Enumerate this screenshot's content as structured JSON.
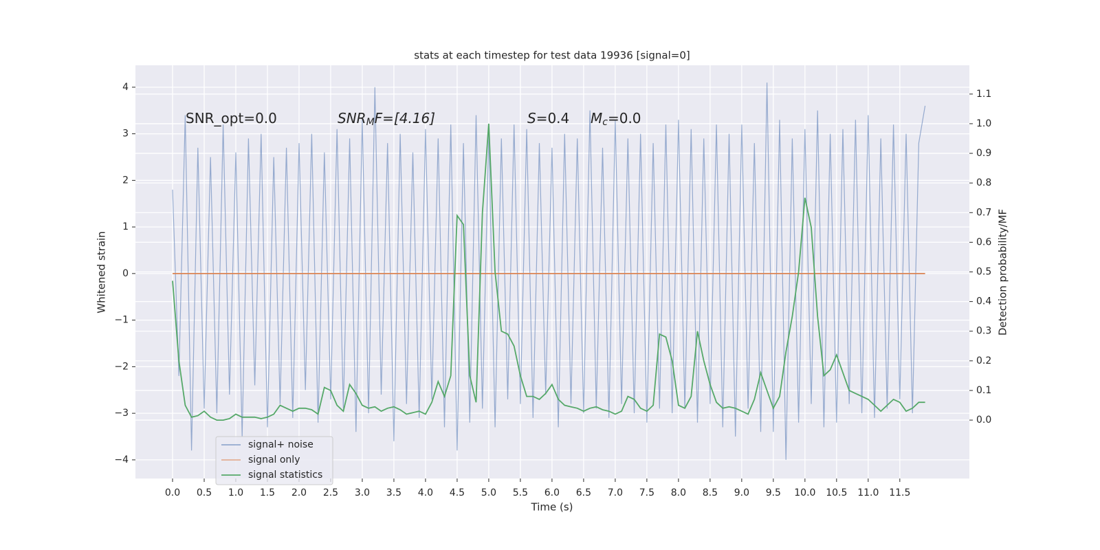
{
  "chart_data": {
    "type": "line",
    "title": "stats at each timestep for test data 19936 [signal=0]",
    "x_label": "Time (s)",
    "y_label": "Whitened strain",
    "y2_label": "Detection probability/MF",
    "annotations": [
      {
        "parts": [
          "SNR_opt=0.0"
        ]
      },
      {
        "parts": [
          "SNR",
          "M",
          "F=[4.16]"
        ]
      },
      {
        "parts": [
          "S",
          "=0.4"
        ]
      },
      {
        "parts": [
          "M",
          "c",
          "=0.0"
        ]
      }
    ],
    "x": [
      0,
      0.1,
      0.2,
      0.3,
      0.4,
      0.5,
      0.6,
      0.7,
      0.8,
      0.9,
      1,
      1.1,
      1.2,
      1.3,
      1.4,
      1.5,
      1.6,
      1.7,
      1.8,
      1.9,
      2,
      2.1,
      2.2,
      2.3,
      2.4,
      2.5,
      2.6,
      2.7,
      2.8,
      2.9,
      3,
      3.1,
      3.2,
      3.3,
      3.4,
      3.5,
      3.6,
      3.7,
      3.8,
      3.9,
      4,
      4.1,
      4.2,
      4.3,
      4.4,
      4.5,
      4.6,
      4.7,
      4.8,
      4.9,
      5,
      5.1,
      5.2,
      5.3,
      5.4,
      5.5,
      5.6,
      5.7,
      5.8,
      5.9,
      6,
      6.1,
      6.2,
      6.3,
      6.4,
      6.5,
      6.6,
      6.7,
      6.8,
      6.9,
      7,
      7.1,
      7.2,
      7.3,
      7.4,
      7.5,
      7.6,
      7.7,
      7.8,
      7.9,
      8,
      8.1,
      8.2,
      8.3,
      8.4,
      8.5,
      8.6,
      8.7,
      8.8,
      8.9,
      9,
      9.1,
      9.2,
      9.3,
      9.4,
      9.5,
      9.6,
      9.7,
      9.8,
      9.9,
      10,
      10.1,
      10.2,
      10.3,
      10.4,
      10.5,
      10.6,
      10.7,
      10.8,
      10.9,
      11,
      11.1,
      11.2,
      11.3,
      11.4,
      11.5,
      11.6,
      11.7,
      11.8,
      11.9
    ],
    "series": [
      {
        "name": "signal+ noise",
        "color": "#4c72b0",
        "values": [
          1.8,
          -2.2,
          3.4,
          -3.8,
          2.7,
          -2.9,
          2.5,
          -3.0,
          3.2,
          -2.6,
          2.6,
          -3.5,
          2.9,
          -2.4,
          3.0,
          -3.3,
          2.5,
          -2.8,
          2.7,
          -3.1,
          2.8,
          -2.5,
          3.0,
          -3.2,
          2.6,
          -2.7,
          3.1,
          -2.9,
          2.9,
          -3.4,
          3.3,
          -3.0,
          4.0,
          -2.6,
          2.8,
          -3.6,
          3.0,
          -2.8,
          2.6,
          -3.1,
          3.1,
          -2.7,
          2.9,
          -3.3,
          3.2,
          -3.8,
          2.8,
          -3.2,
          3.4,
          -2.9,
          3.0,
          -3.3,
          2.9,
          -2.7,
          3.2,
          -2.8,
          3.1,
          -3.1,
          2.8,
          -2.6,
          2.7,
          -3.3,
          3.0,
          -2.8,
          2.9,
          -3.0,
          3.5,
          -2.9,
          2.7,
          -3.1,
          3.3,
          -2.8,
          2.9,
          -3.0,
          3.0,
          -3.2,
          2.8,
          -2.9,
          3.2,
          -3.0,
          3.3,
          -2.9,
          3.1,
          -3.2,
          2.9,
          -2.8,
          3.2,
          -3.3,
          3.0,
          -3.5,
          3.2,
          -2.9,
          2.8,
          -3.4,
          4.1,
          -3.4,
          3.3,
          -4.0,
          2.9,
          -3.2,
          3.1,
          -2.8,
          3.5,
          -3.3,
          3.0,
          -3.2,
          3.1,
          -2.8,
          3.3,
          -3.0,
          3.4,
          -3.1,
          2.9,
          -2.9,
          3.2,
          -2.7,
          3.0,
          -3.0,
          2.8,
          3.6
        ]
      },
      {
        "name": "signal only",
        "color": "#dd8452",
        "values": [
          0,
          0,
          0,
          0,
          0,
          0,
          0,
          0,
          0,
          0,
          0,
          0,
          0,
          0,
          0,
          0,
          0,
          0,
          0,
          0,
          0,
          0,
          0,
          0,
          0,
          0,
          0,
          0,
          0,
          0,
          0,
          0,
          0,
          0,
          0,
          0,
          0,
          0,
          0,
          0,
          0,
          0,
          0,
          0,
          0,
          0,
          0,
          0,
          0,
          0,
          0,
          0,
          0,
          0,
          0,
          0,
          0,
          0,
          0,
          0,
          0,
          0,
          0,
          0,
          0,
          0,
          0,
          0,
          0,
          0,
          0,
          0,
          0,
          0,
          0,
          0,
          0,
          0,
          0,
          0,
          0,
          0,
          0,
          0,
          0,
          0,
          0,
          0,
          0,
          0,
          0,
          0,
          0,
          0,
          0,
          0,
          0,
          0,
          0,
          0,
          0,
          0,
          0,
          0,
          0,
          0,
          0,
          0,
          0,
          0,
          0,
          0,
          0,
          0,
          0,
          0,
          0,
          0,
          0,
          0
        ]
      },
      {
        "name": "signal statistics",
        "color": "#55a868",
        "axis": "y2",
        "values": [
          0.47,
          0.2,
          0.05,
          0.01,
          0.015,
          0.03,
          0.01,
          0.0,
          0.0,
          0.005,
          0.02,
          0.01,
          0.01,
          0.01,
          0.005,
          0.01,
          0.02,
          0.05,
          0.04,
          0.03,
          0.04,
          0.04,
          0.035,
          0.02,
          0.11,
          0.1,
          0.05,
          0.03,
          0.12,
          0.09,
          0.05,
          0.04,
          0.045,
          0.03,
          0.04,
          0.045,
          0.035,
          0.02,
          0.025,
          0.03,
          0.02,
          0.06,
          0.13,
          0.08,
          0.15,
          0.69,
          0.66,
          0.15,
          0.06,
          0.7,
          1.0,
          0.5,
          0.3,
          0.29,
          0.25,
          0.15,
          0.08,
          0.08,
          0.07,
          0.09,
          0.12,
          0.07,
          0.05,
          0.045,
          0.04,
          0.03,
          0.04,
          0.045,
          0.035,
          0.03,
          0.02,
          0.03,
          0.08,
          0.07,
          0.04,
          0.03,
          0.05,
          0.29,
          0.28,
          0.2,
          0.05,
          0.04,
          0.08,
          0.3,
          0.2,
          0.12,
          0.06,
          0.04,
          0.045,
          0.04,
          0.03,
          0.02,
          0.07,
          0.16,
          0.1,
          0.04,
          0.08,
          0.23,
          0.35,
          0.5,
          0.75,
          0.65,
          0.35,
          0.15,
          0.17,
          0.22,
          0.16,
          0.1,
          0.09,
          0.08,
          0.07,
          0.05,
          0.03,
          0.05,
          0.07,
          0.06,
          0.03,
          0.04,
          0.06,
          0.06
        ]
      }
    ],
    "xlim": [
      -0.587,
      12.6
    ],
    "xticks": [
      {
        "value": 0,
        "label": "0.0"
      },
      0.5,
      {
        "value": 1,
        "label": "1.0"
      },
      1.5,
      {
        "value": 2,
        "label": "2.0"
      },
      2.5,
      {
        "value": 3,
        "label": "3.0"
      },
      3.5,
      {
        "value": 4,
        "label": "4.0"
      },
      4.5,
      {
        "value": 5,
        "label": "5.0"
      },
      5.5,
      {
        "value": 6,
        "label": "6.0"
      },
      6.5,
      {
        "value": 7,
        "label": "7.0"
      },
      7.5,
      {
        "value": 8,
        "label": "8.0"
      },
      8.5,
      {
        "value": 9,
        "label": "9.0"
      },
      9.5,
      {
        "value": 10,
        "label": "10.0"
      },
      10.5,
      {
        "value": 11,
        "label": "11.0"
      },
      11.5
    ],
    "ylim": [
      -4.4,
      4.47
    ],
    "yticks": [
      {
        "value": -4,
        "label": "−4"
      },
      {
        "value": -3,
        "label": "−3"
      },
      {
        "value": -2,
        "label": "−2"
      },
      {
        "value": -1,
        "label": "−1"
      },
      0,
      1,
      2,
      3,
      4
    ],
    "y2lim": [
      -0.197,
      1.197
    ],
    "y2ticks": [
      {
        "value": 0,
        "label": "0.0"
      },
      0.1,
      0.2,
      0.3,
      0.4,
      0.5,
      0.6,
      0.7,
      0.8,
      0.9,
      {
        "value": 1,
        "label": "1.0"
      },
      1.1
    ],
    "grid": true,
    "legend": "lower left"
  }
}
